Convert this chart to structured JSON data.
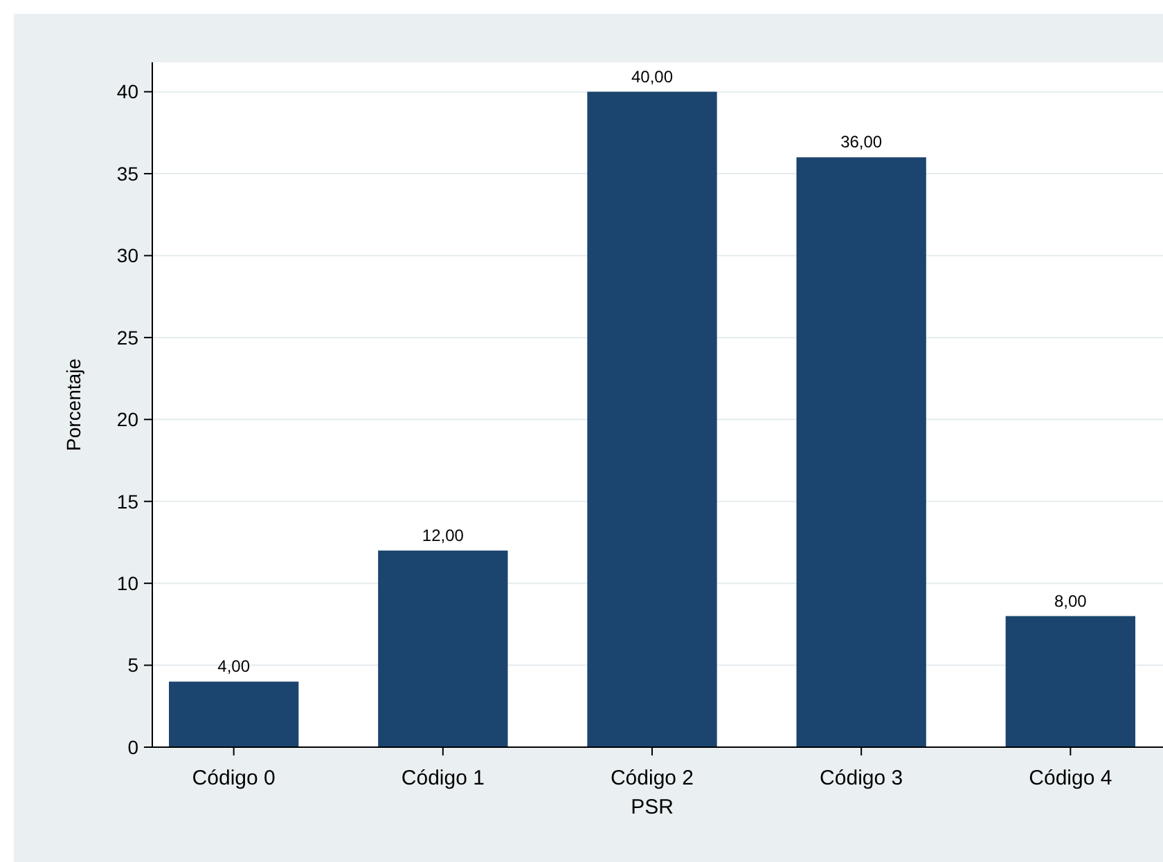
{
  "chart_data": {
    "type": "bar",
    "xlabel": "PSR",
    "ylabel": "Porcentaje",
    "categories": [
      "Código 0",
      "Código 1",
      "Código 2",
      "Código 3",
      "Código 4"
    ],
    "values": [
      4,
      12,
      40,
      36,
      8
    ],
    "value_labels": [
      "4,00",
      "12,00",
      "40,00",
      "36,00",
      "8,00"
    ],
    "color": "#1b456f",
    "ylim": [
      0,
      41.8
    ],
    "yticks": [
      0,
      5,
      10,
      15,
      20,
      25,
      30,
      35,
      40
    ],
    "grid": "y"
  }
}
